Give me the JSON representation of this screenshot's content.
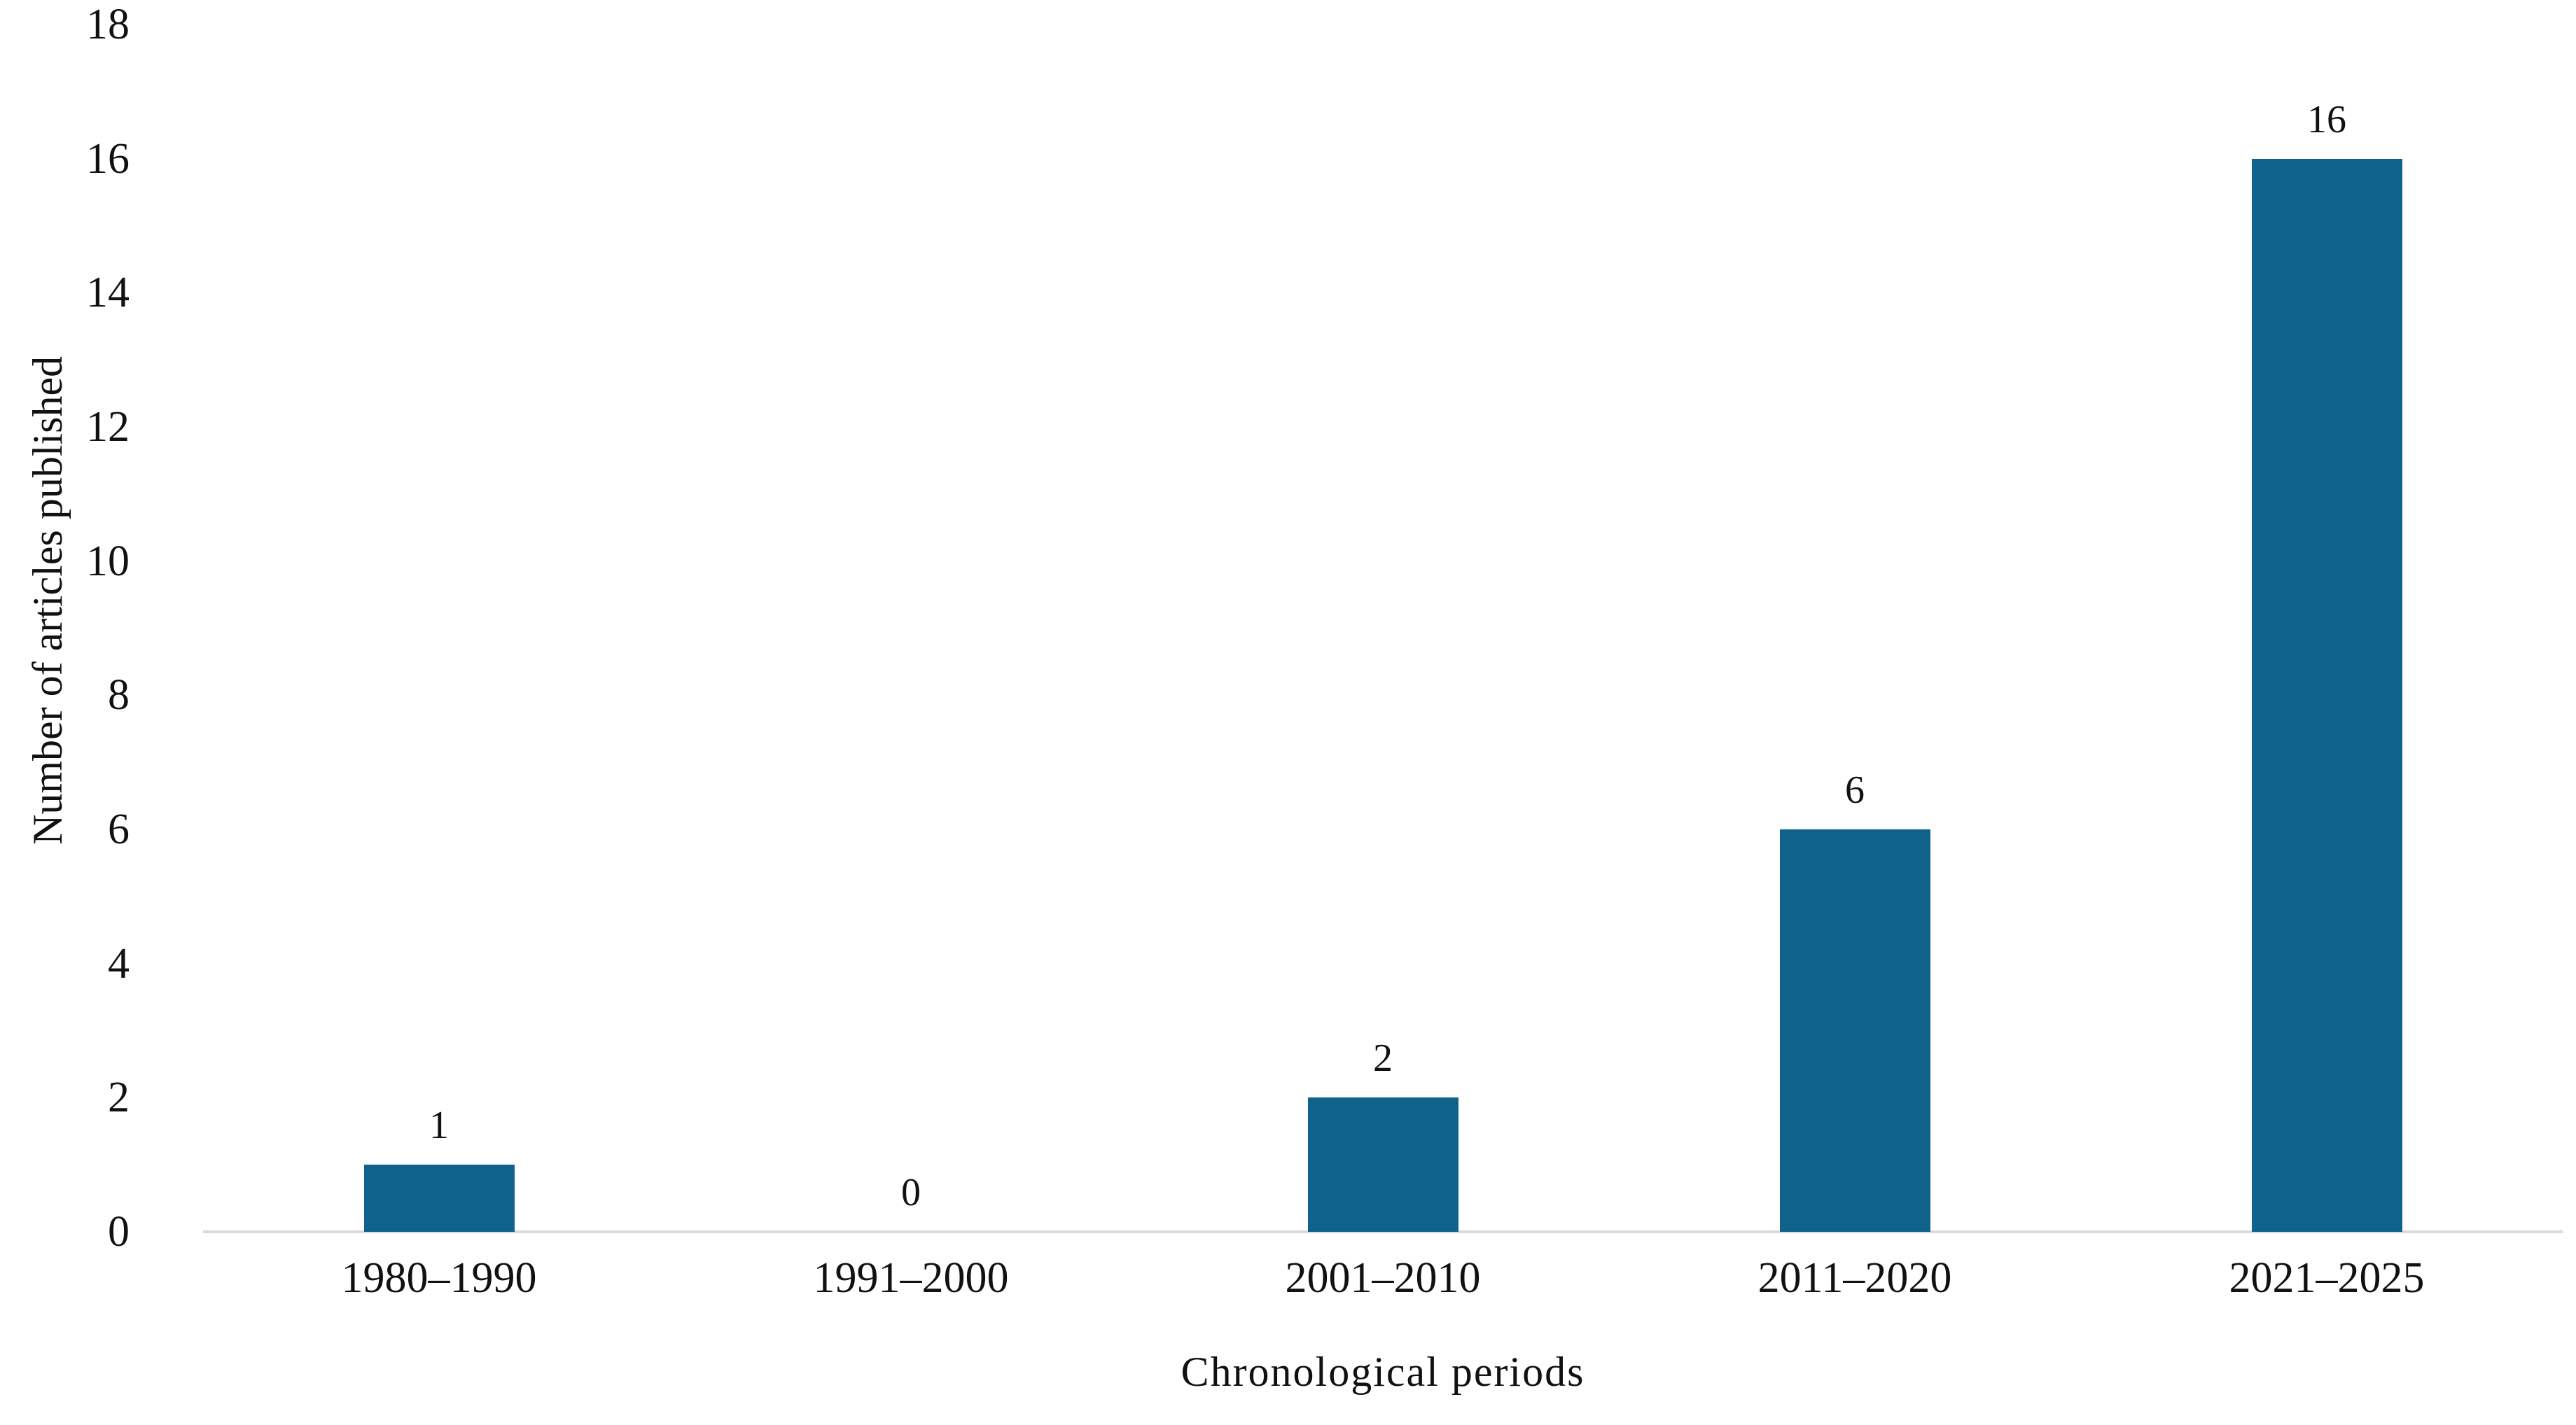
{
  "chart_data": {
    "type": "bar",
    "categories": [
      "1980–1990",
      "1991–2000",
      "2001–2010",
      "2011–2020",
      "2021–2025"
    ],
    "values": [
      1,
      0,
      2,
      6,
      16
    ],
    "data_labels": [
      "1",
      "0",
      "2",
      "6",
      "16"
    ],
    "title": "",
    "xlabel": "Chronological periods",
    "ylabel": "Number of articles published",
    "ylim": [
      0,
      18
    ],
    "ytick_step": 2,
    "yticks": [
      0,
      2,
      4,
      6,
      8,
      10,
      12,
      14,
      16,
      18
    ],
    "grid": false,
    "legend": false,
    "bar_color": "#0f638a",
    "axis_line_color": "#d9d9d9",
    "text_color": "#111111"
  }
}
